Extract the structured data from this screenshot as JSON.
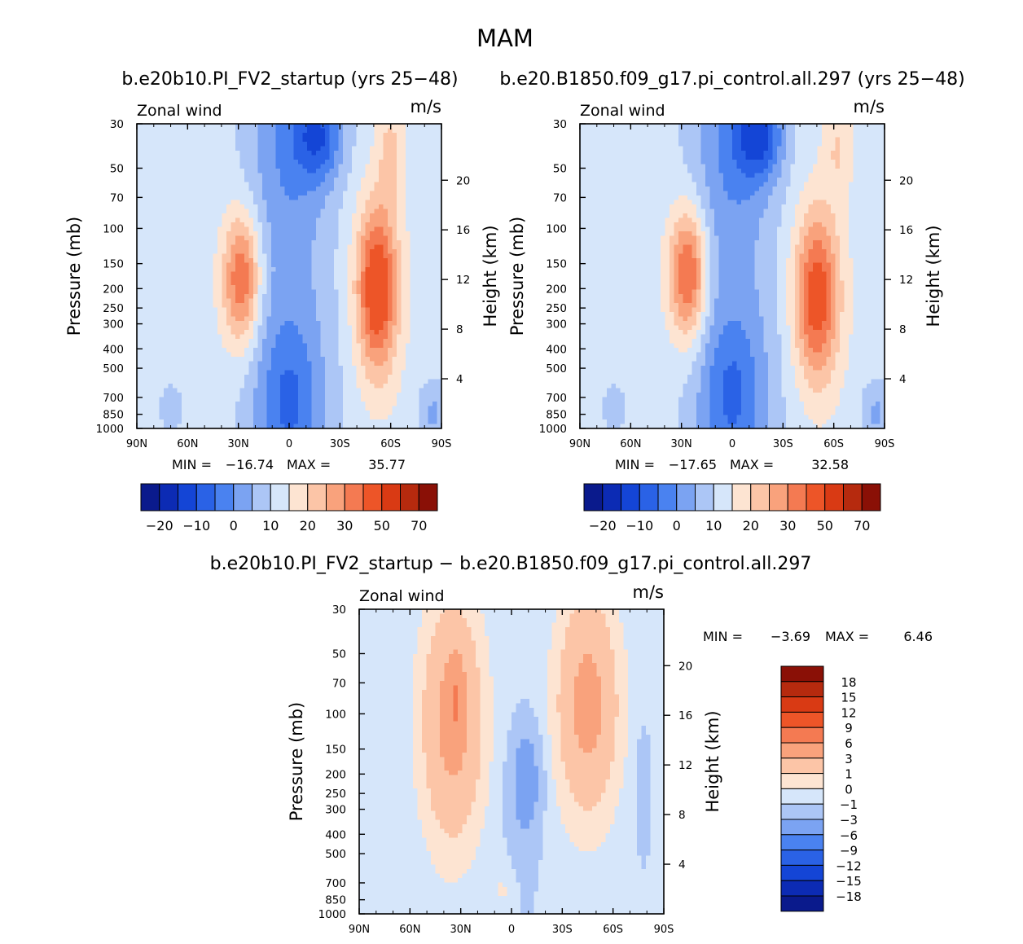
{
  "figure": {
    "title": "MAM",
    "top_left_header": "b.e20b10.PI_FV2_startup (yrs 25−48)",
    "top_right_header": "b.e20.B1850.f09_g17.pi_control.all.297 (yrs 25−48)",
    "diff_header": "b.e20b10.PI_FV2_startup − b.e20.B1850.f09_g17.pi_control.all.297"
  },
  "chart_data": [
    {
      "type": "heatmap",
      "panel": "top-left",
      "variable": "Zonal wind",
      "units": "m/s",
      "ylabel": "Pressure (mb)",
      "y2label": "Height (km)",
      "x_ticks": [
        "90N",
        "60N",
        "30N",
        "0",
        "30S",
        "60S",
        "90S"
      ],
      "y_ticks": [
        30,
        50,
        70,
        100,
        150,
        200,
        250,
        300,
        400,
        500,
        700,
        850,
        1000
      ],
      "y2_ticks": [
        20,
        16,
        12,
        8,
        4
      ],
      "ylim": [
        1000,
        30
      ],
      "min_label": "MIN =",
      "min": "−16.74",
      "max_label": "MAX =",
      "max": "35.77",
      "jets": [
        {
          "lat": 28,
          "p": 180,
          "peak": 29
        },
        {
          "lat": -52,
          "p": 200,
          "peak": 35.77
        }
      ],
      "easterlies": [
        {
          "lat": -18,
          "p": 35,
          "value": -16.74
        }
      ],
      "contour_levels": [
        -25,
        -20,
        -15,
        -10,
        -5,
        0,
        5,
        10,
        15,
        20,
        25,
        30,
        40,
        50,
        60,
        70
      ],
      "colorbar_labels": [
        "−20",
        "−10",
        "0",
        "10",
        "20",
        "30",
        "50",
        "70"
      ]
    },
    {
      "type": "heatmap",
      "panel": "top-right",
      "variable": "Zonal wind",
      "units": "m/s",
      "ylabel": "Pressure (mb)",
      "y2label": "Height (km)",
      "x_ticks": [
        "90N",
        "60N",
        "30N",
        "0",
        "30S",
        "60S",
        "90S"
      ],
      "y_ticks": [
        30,
        50,
        70,
        100,
        150,
        200,
        250,
        300,
        400,
        500,
        700,
        850,
        1000
      ],
      "y2_ticks": [
        20,
        16,
        12,
        8,
        4
      ],
      "ylim": [
        1000,
        30
      ],
      "min_label": "MIN =",
      "min": "−17.65",
      "max_label": "MAX =",
      "max": "32.58",
      "jets": [
        {
          "lat": 26,
          "p": 170,
          "peak": 31
        },
        {
          "lat": -50,
          "p": 220,
          "peak": 32.58
        }
      ],
      "easterlies": [
        {
          "lat": -16,
          "p": 35,
          "value": -17.65
        }
      ],
      "contour_levels": [
        -25,
        -20,
        -15,
        -10,
        -5,
        0,
        5,
        10,
        15,
        20,
        25,
        30,
        40,
        50,
        60,
        70
      ],
      "colorbar_labels": [
        "−20",
        "−10",
        "0",
        "10",
        "20",
        "30",
        "50",
        "70"
      ]
    },
    {
      "type": "heatmap",
      "panel": "difference",
      "variable": "Zonal wind",
      "units": "m/s",
      "ylabel": "Pressure (mb)",
      "y2label": "Height (km)",
      "x_ticks": [
        "90N",
        "60N",
        "30N",
        "0",
        "30S",
        "60S",
        "90S"
      ],
      "y_ticks": [
        30,
        50,
        70,
        100,
        150,
        200,
        250,
        300,
        400,
        500,
        700,
        850,
        1000
      ],
      "y2_ticks": [
        20,
        16,
        12,
        8,
        4
      ],
      "ylim": [
        1000,
        30
      ],
      "min_label": "MIN =",
      "min": "−3.69",
      "max_label": "MAX =",
      "max": "6.46",
      "contour_levels": [
        -18,
        -15,
        -12,
        -9,
        -6,
        -3,
        -1,
        0,
        1,
        3,
        6,
        9,
        12,
        15,
        18
      ],
      "colorbar_labels": [
        "18",
        "15",
        "12",
        "9",
        "6",
        "3",
        "1",
        "0",
        "−1",
        "−3",
        "−6",
        "−9",
        "−12",
        "−15",
        "−18"
      ]
    }
  ],
  "colors": {
    "field_palette": [
      "#0a1a8c",
      "#0c2bb4",
      "#1445d6",
      "#2a62e6",
      "#4a82f0",
      "#7ba3f2",
      "#acc6f6",
      "#d6e6fa",
      "#fde4d2",
      "#fcc5a7",
      "#f9a27c",
      "#f47a52",
      "#ed5528",
      "#d93a14",
      "#b62a0e",
      "#8a1006"
    ],
    "diff_palette": [
      "#0a1a8c",
      "#0c2bb4",
      "#1445d6",
      "#2a62e6",
      "#4a82f0",
      "#7ba3f2",
      "#acc6f6",
      "#d6e6fa",
      "#fde4d2",
      "#fcc5a7",
      "#f9a27c",
      "#f47a52",
      "#ed5528",
      "#d93a14",
      "#b62a0e",
      "#8a1006"
    ],
    "unfilled": "#ffffff"
  }
}
